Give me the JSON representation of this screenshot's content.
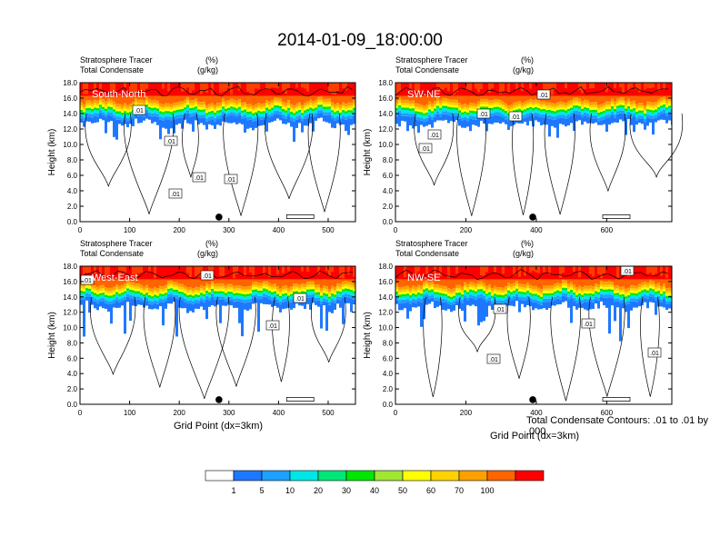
{
  "figure": {
    "title": "2014-01-09_18:00:00",
    "field1_name": "Stratosphere Tracer",
    "field1_units": "(%)",
    "field2_name": "Total Condensate",
    "field2_units": "(g/kg)",
    "ylabel": "Height (km)",
    "xlabel": "Grid Point (dx=3km)",
    "contour_note": "Total Condensate Contours: .01 to .01 by .000"
  },
  "colors": {
    "levels": [
      "#ffffff",
      "#1e78ff",
      "#1ea0ff",
      "#00e6e6",
      "#00e678",
      "#00e600",
      "#a0e632",
      "#ffff00",
      "#ffd200",
      "#ffa000",
      "#ff6400",
      "#ff0000"
    ]
  },
  "chart_data": [
    {
      "type": "heatmap",
      "panel_label": "South-North",
      "x_ticks": [
        0,
        100,
        200,
        300,
        400,
        500
      ],
      "x_range": [
        0,
        555
      ],
      "y_ticks": [
        "0.0",
        "2.0",
        "4.0",
        "6.0",
        "8.0",
        "10.0",
        "12.0",
        "14.0",
        "16.0",
        "18.0"
      ],
      "y_range_km": [
        0,
        18
      ],
      "contour_labels": [
        ".01",
        ".01",
        ".01",
        ".01",
        ".01"
      ],
      "marker_x": 280
    },
    {
      "type": "heatmap",
      "panel_label": "SW-NE",
      "x_ticks": [
        0,
        200,
        400,
        600
      ],
      "x_range": [
        0,
        785
      ],
      "y_ticks": [
        "0.0",
        "2.0",
        "4.0",
        "6.0",
        "8.0",
        "10.0",
        "12.0",
        "14.0",
        "16.0",
        "18.0"
      ],
      "y_range_km": [
        0,
        18
      ],
      "contour_labels": [
        ".01",
        ".01",
        ".01",
        ".01",
        ".01"
      ],
      "marker_x": 390
    },
    {
      "type": "heatmap",
      "panel_label": "West-East",
      "x_ticks": [
        0,
        100,
        200,
        300,
        400,
        500
      ],
      "x_range": [
        0,
        555
      ],
      "y_ticks": [
        "0.0",
        "2.0",
        "4.0",
        "6.0",
        "8.0",
        "10.0",
        "12.0",
        "14.0",
        "16.0",
        "18.0"
      ],
      "y_range_km": [
        0,
        18
      ],
      "contour_labels": [
        ".01",
        ".01",
        ".01",
        ".01"
      ],
      "marker_x": 280
    },
    {
      "type": "heatmap",
      "panel_label": "NW-SE",
      "x_ticks": [
        0,
        200,
        400,
        600
      ],
      "x_range": [
        0,
        785
      ],
      "y_ticks": [
        "0.0",
        "2.0",
        "4.0",
        "6.0",
        "8.0",
        "10.0",
        "12.0",
        "14.0",
        "16.0",
        "18.0"
      ],
      "y_range_km": [
        0,
        18
      ],
      "contour_labels": [
        ".01",
        ".01",
        ".01",
        ".01",
        ".01"
      ],
      "marker_x": 390
    }
  ],
  "colorbar": {
    "labels": [
      "1",
      "5",
      "10",
      "20",
      "30",
      "40",
      "50",
      "60",
      "70",
      "100"
    ]
  }
}
